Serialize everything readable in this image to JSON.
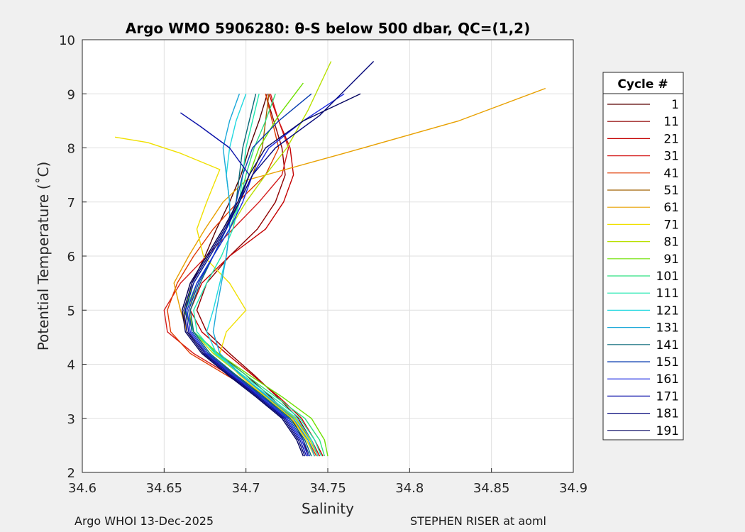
{
  "chart_data": {
    "type": "line",
    "title": "Argo WMO 5906280: θ-S below 500 dbar,  QC=(1,2)",
    "xlabel": "Salinity",
    "ylabel": "Potential Temperature (˚C)",
    "xlim": [
      34.6,
      34.9
    ],
    "ylim": [
      2,
      10
    ],
    "xticks": [
      "34.6",
      "34.65",
      "34.7",
      "34.75",
      "34.8",
      "34.85",
      "34.9"
    ],
    "yticks": [
      "2",
      "3",
      "4",
      "5",
      "6",
      "7",
      "8",
      "9",
      "10"
    ],
    "grid": true,
    "legend_title": "Cycle #",
    "legend_position": "outside-right",
    "series": [
      {
        "name": "1",
        "color": "#5a0000",
        "x": [
          34.738,
          34.735,
          34.728,
          34.715,
          34.7,
          34.683,
          34.668,
          34.663,
          34.667,
          34.675,
          34.682,
          34.69,
          34.697,
          34.702,
          34.708,
          34.713
        ],
        "y": [
          2.3,
          2.6,
          3.0,
          3.4,
          3.8,
          4.2,
          4.6,
          5.0,
          5.5,
          6.0,
          6.5,
          7.0,
          7.5,
          8.0,
          8.5,
          9.0
        ]
      },
      {
        "name": "11",
        "color": "#8f0000",
        "x": [
          34.745,
          34.74,
          34.732,
          34.719,
          34.705,
          34.69,
          34.676,
          34.67,
          34.676,
          34.69,
          34.707,
          34.718,
          34.724,
          34.722,
          34.717,
          34.712
        ],
        "y": [
          2.3,
          2.6,
          3.0,
          3.4,
          3.8,
          4.2,
          4.6,
          5.0,
          5.5,
          6.0,
          6.5,
          7.0,
          7.5,
          8.0,
          8.5,
          9.0
        ]
      },
      {
        "name": "21",
        "color": "#c40000",
        "x": [
          34.747,
          34.742,
          34.734,
          34.72,
          34.704,
          34.688,
          34.673,
          34.666,
          34.673,
          34.69,
          34.712,
          34.723,
          34.729,
          34.727,
          34.72,
          34.714
        ],
        "y": [
          2.3,
          2.6,
          3.0,
          3.4,
          3.8,
          4.2,
          4.6,
          5.0,
          5.5,
          6.0,
          6.5,
          7.0,
          7.5,
          8.0,
          8.5,
          9.0
        ]
      },
      {
        "name": "31",
        "color": "#d41a1a",
        "x": [
          34.745,
          34.74,
          34.73,
          34.712,
          34.69,
          34.668,
          34.652,
          34.65,
          34.66,
          34.676,
          34.692,
          34.708,
          34.722,
          34.726,
          34.72,
          34.715
        ],
        "y": [
          2.3,
          2.6,
          3.0,
          3.4,
          3.8,
          4.2,
          4.6,
          5.0,
          5.5,
          6.0,
          6.5,
          7.0,
          7.5,
          8.0,
          8.5,
          9.0
        ]
      },
      {
        "name": "41",
        "color": "#e03a00",
        "x": [
          34.743,
          34.738,
          34.728,
          34.71,
          34.688,
          34.666,
          34.654,
          34.652,
          34.658,
          34.668,
          34.68,
          34.695,
          34.712,
          34.72,
          34.716,
          34.712
        ],
        "y": [
          2.3,
          2.6,
          3.0,
          3.4,
          3.8,
          4.2,
          4.6,
          5.0,
          5.5,
          6.0,
          6.5,
          7.0,
          7.5,
          8.0,
          8.5,
          9.0
        ]
      },
      {
        "name": "51",
        "color": "#a06000",
        "x": [
          34.742,
          34.737,
          34.728,
          34.712,
          34.694,
          34.676,
          34.664,
          34.661,
          34.666,
          34.676,
          34.686,
          34.696,
          34.704,
          34.71,
          34.712,
          34.714
        ],
        "y": [
          2.3,
          2.6,
          3.0,
          3.4,
          3.8,
          4.2,
          4.6,
          5.0,
          5.5,
          6.0,
          6.5,
          7.0,
          7.5,
          8.0,
          8.5,
          9.0
        ]
      },
      {
        "name": "61",
        "color": "#e8a000",
        "x": [
          34.744,
          34.739,
          34.73,
          34.713,
          34.693,
          34.674,
          34.664,
          34.66,
          34.656,
          34.665,
          34.675,
          34.686,
          34.7,
          34.76,
          34.83,
          34.883
        ],
        "y": [
          2.3,
          2.6,
          3.0,
          3.4,
          3.8,
          4.2,
          4.6,
          5.0,
          5.5,
          6.0,
          6.5,
          7.0,
          7.4,
          7.9,
          8.5,
          9.1
        ]
      },
      {
        "name": "71",
        "color": "#f0e000",
        "x": [
          34.742,
          34.737,
          34.728,
          34.712,
          34.696,
          34.684,
          34.688,
          34.7,
          34.69,
          34.674,
          34.67,
          34.676,
          34.684,
          34.66,
          34.64,
          34.62
        ],
        "y": [
          2.3,
          2.6,
          3.0,
          3.4,
          3.8,
          4.2,
          4.6,
          5.0,
          5.5,
          6.0,
          6.5,
          7.0,
          7.6,
          7.9,
          8.1,
          8.2
        ]
      },
      {
        "name": "81",
        "color": "#b8e000",
        "x": [
          34.744,
          34.739,
          34.73,
          34.714,
          34.697,
          34.68,
          34.668,
          34.665,
          34.67,
          34.68,
          34.69,
          34.7,
          34.712,
          34.725,
          34.738,
          34.752
        ],
        "y": [
          2.3,
          2.6,
          3.0,
          3.4,
          3.8,
          4.2,
          4.6,
          5.0,
          5.5,
          6.0,
          6.5,
          7.0,
          7.5,
          8.0,
          8.7,
          9.6
        ]
      },
      {
        "name": "91",
        "color": "#6ee000",
        "x": [
          34.75,
          34.748,
          34.74,
          34.722,
          34.702,
          34.683,
          34.668,
          34.662,
          34.668,
          34.678,
          34.688,
          34.696,
          34.702,
          34.708,
          34.72,
          34.735
        ],
        "y": [
          2.3,
          2.6,
          3.0,
          3.4,
          3.8,
          4.2,
          4.6,
          5.0,
          5.5,
          6.0,
          6.5,
          7.0,
          7.5,
          8.0,
          8.6,
          9.2
        ]
      },
      {
        "name": "101",
        "color": "#2ee080",
        "x": [
          34.748,
          34.745,
          34.736,
          34.718,
          34.7,
          34.682,
          34.668,
          34.663,
          34.67,
          34.68,
          34.69,
          34.696,
          34.7,
          34.705,
          34.712,
          34.718
        ],
        "y": [
          2.3,
          2.6,
          3.0,
          3.4,
          3.8,
          4.2,
          4.6,
          5.0,
          5.5,
          6.0,
          6.5,
          7.0,
          7.5,
          8.0,
          8.5,
          9.0
        ]
      },
      {
        "name": "111",
        "color": "#20e8b0",
        "x": [
          34.746,
          34.742,
          34.733,
          34.716,
          34.698,
          34.681,
          34.67,
          34.668,
          34.676,
          34.685,
          34.692,
          34.696,
          34.698,
          34.7,
          34.704,
          34.708
        ],
        "y": [
          2.3,
          2.6,
          3.0,
          3.4,
          3.8,
          4.2,
          4.6,
          5.0,
          5.5,
          6.0,
          6.5,
          7.0,
          7.5,
          8.0,
          8.5,
          9.0
        ]
      },
      {
        "name": "121",
        "color": "#20d8e0",
        "x": [
          34.744,
          34.74,
          34.731,
          34.714,
          34.697,
          34.682,
          34.676,
          34.68,
          34.684,
          34.688,
          34.69,
          34.69,
          34.688,
          34.69,
          34.694,
          34.7
        ],
        "y": [
          2.3,
          2.6,
          3.0,
          3.4,
          3.8,
          4.2,
          4.6,
          5.0,
          5.5,
          6.0,
          6.5,
          7.0,
          7.5,
          8.0,
          8.5,
          9.0
        ]
      },
      {
        "name": "131",
        "color": "#1aa8d8",
        "x": [
          34.742,
          34.738,
          34.729,
          34.713,
          34.697,
          34.684,
          34.68,
          34.682,
          34.685,
          34.688,
          34.69,
          34.69,
          34.688,
          34.686,
          34.69,
          34.696
        ],
        "y": [
          2.3,
          2.6,
          3.0,
          3.4,
          3.8,
          4.2,
          4.6,
          5.0,
          5.5,
          6.0,
          6.5,
          7.0,
          7.5,
          8.0,
          8.5,
          9.0
        ]
      },
      {
        "name": "141",
        "color": "#0a6878",
        "x": [
          34.74,
          34.736,
          34.727,
          34.711,
          34.694,
          34.678,
          34.668,
          34.666,
          34.672,
          34.68,
          34.688,
          34.694,
          34.696,
          34.698,
          34.702,
          34.706
        ],
        "y": [
          2.3,
          2.6,
          3.0,
          3.4,
          3.8,
          4.2,
          4.6,
          5.0,
          5.5,
          6.0,
          6.5,
          7.0,
          7.5,
          8.0,
          8.5,
          9.0
        ]
      },
      {
        "name": "151",
        "color": "#0a3fb0",
        "x": [
          34.739,
          34.735,
          34.726,
          34.71,
          34.693,
          34.677,
          34.667,
          34.665,
          34.671,
          34.68,
          34.688,
          34.694,
          34.698,
          34.704,
          34.72,
          34.74
        ],
        "y": [
          2.3,
          2.6,
          3.0,
          3.4,
          3.8,
          4.2,
          4.6,
          5.0,
          5.5,
          6.0,
          6.5,
          7.0,
          7.5,
          8.0,
          8.5,
          9.0
        ]
      },
      {
        "name": "161",
        "color": "#1a28e0",
        "x": [
          34.738,
          34.734,
          34.725,
          34.709,
          34.692,
          34.676,
          34.666,
          34.664,
          34.67,
          34.68,
          34.69,
          34.698,
          34.704,
          34.714,
          34.735,
          34.76
        ],
        "y": [
          2.3,
          2.6,
          3.0,
          3.4,
          3.8,
          4.2,
          4.6,
          5.0,
          5.5,
          6.0,
          6.5,
          7.0,
          7.5,
          8.0,
          8.5,
          9.0
        ]
      },
      {
        "name": "171",
        "color": "#0a10a8",
        "x": [
          34.737,
          34.733,
          34.724,
          34.708,
          34.691,
          34.675,
          34.665,
          34.663,
          34.668,
          34.678,
          34.688,
          34.696,
          34.702,
          34.69,
          34.672,
          34.66
        ],
        "y": [
          2.3,
          2.6,
          3.0,
          3.4,
          3.8,
          4.2,
          4.6,
          5.0,
          5.5,
          6.0,
          6.5,
          7.0,
          7.5,
          8.0,
          8.4,
          8.65
        ]
      },
      {
        "name": "181",
        "color": "#06087a",
        "x": [
          34.736,
          34.732,
          34.723,
          34.707,
          34.69,
          34.674,
          34.664,
          34.662,
          34.667,
          34.677,
          34.687,
          34.696,
          34.704,
          34.718,
          34.745,
          34.778
        ],
        "y": [
          2.3,
          2.6,
          3.0,
          3.4,
          3.8,
          4.2,
          4.6,
          5.0,
          5.5,
          6.0,
          6.5,
          7.0,
          7.5,
          8.0,
          8.6,
          9.6
        ]
      },
      {
        "name": "191",
        "color": "#040460",
        "x": [
          34.735,
          34.731,
          34.722,
          34.706,
          34.689,
          34.673,
          34.663,
          34.661,
          34.666,
          34.676,
          34.686,
          34.695,
          34.702,
          34.712,
          34.735,
          34.77
        ],
        "y": [
          2.3,
          2.6,
          3.0,
          3.4,
          3.8,
          4.2,
          4.6,
          5.0,
          5.5,
          6.0,
          6.5,
          7.0,
          7.5,
          8.0,
          8.5,
          9.0
        ]
      }
    ]
  },
  "footer": {
    "left": "Argo WHOI 13-Dec-2025",
    "right": "STEPHEN RISER at aoml"
  }
}
